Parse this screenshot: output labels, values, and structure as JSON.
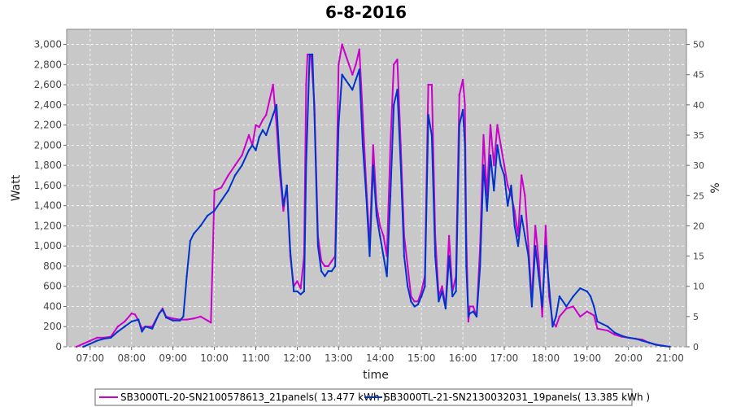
{
  "chart_data": {
    "type": "line",
    "title": "6-8-2016",
    "xlabel": "time",
    "ylabel": "Watt",
    "y2label": "%",
    "x_range": [
      "06:26",
      "21:24"
    ],
    "ylim": [
      0,
      3150
    ],
    "y2lim": [
      0,
      52.5
    ],
    "x_ticks": [
      "07:00",
      "08:00",
      "09:00",
      "10:00",
      "11:00",
      "12:00",
      "13:00",
      "14:00",
      "15:00",
      "16:00",
      "17:00",
      "18:00",
      "19:00",
      "20:00",
      "21:00"
    ],
    "y_ticks": [
      "0",
      "200",
      "400",
      "600",
      "800",
      "1,000",
      "1,200",
      "1,400",
      "1,600",
      "1,800",
      "2,000",
      "2,200",
      "2,400",
      "2,600",
      "2,800",
      "3,000"
    ],
    "y2_ticks": [
      "0",
      "5",
      "10",
      "15",
      "20",
      "25",
      "30",
      "35",
      "40",
      "45",
      "50"
    ],
    "grid": true,
    "legend_position": "bottom",
    "colors": {
      "plot_bg": "#c8c8c8",
      "grid": "#ffffff",
      "outline": "#888888"
    },
    "series": [
      {
        "name": "SB3000TL-20-SN2100578613_21panels( 13.477 kWh )",
        "color": "#cc00cc",
        "points": [
          [
            "06:40",
            0
          ],
          [
            "06:50",
            30
          ],
          [
            "07:00",
            60
          ],
          [
            "07:10",
            90
          ],
          [
            "07:20",
            90
          ],
          [
            "07:30",
            100
          ],
          [
            "07:40",
            200
          ],
          [
            "07:50",
            250
          ],
          [
            "08:00",
            330
          ],
          [
            "08:05",
            320
          ],
          [
            "08:10",
            260
          ],
          [
            "08:15",
            180
          ],
          [
            "08:20",
            200
          ],
          [
            "08:30",
            200
          ],
          [
            "08:40",
            330
          ],
          [
            "08:45",
            380
          ],
          [
            "08:50",
            300
          ],
          [
            "09:00",
            280
          ],
          [
            "09:10",
            270
          ],
          [
            "09:20",
            270
          ],
          [
            "09:30",
            280
          ],
          [
            "09:40",
            300
          ],
          [
            "09:50",
            260
          ],
          [
            "09:55",
            240
          ],
          [
            "09:58",
            1000
          ],
          [
            "10:00",
            1550
          ],
          [
            "10:10",
            1580
          ],
          [
            "10:20",
            1700
          ],
          [
            "10:30",
            1800
          ],
          [
            "10:40",
            1900
          ],
          [
            "10:50",
            2100
          ],
          [
            "10:55",
            2000
          ],
          [
            "11:00",
            2200
          ],
          [
            "11:05",
            2180
          ],
          [
            "11:10",
            2250
          ],
          [
            "11:15",
            2300
          ],
          [
            "11:20",
            2450
          ],
          [
            "11:25",
            2600
          ],
          [
            "11:30",
            2200
          ],
          [
            "11:35",
            1700
          ],
          [
            "11:40",
            1350
          ],
          [
            "11:45",
            1600
          ],
          [
            "11:50",
            900
          ],
          [
            "11:55",
            600
          ],
          [
            "12:00",
            650
          ],
          [
            "12:05",
            580
          ],
          [
            "12:10",
            900
          ],
          [
            "12:13",
            2600
          ],
          [
            "12:15",
            2900
          ],
          [
            "12:20",
            2900
          ],
          [
            "12:25",
            2400
          ],
          [
            "12:30",
            1100
          ],
          [
            "12:35",
            850
          ],
          [
            "12:40",
            800
          ],
          [
            "12:45",
            800
          ],
          [
            "12:50",
            850
          ],
          [
            "12:55",
            900
          ],
          [
            "13:00",
            2800
          ],
          [
            "13:05",
            3000
          ],
          [
            "13:10",
            2900
          ],
          [
            "13:15",
            2800
          ],
          [
            "13:20",
            2700
          ],
          [
            "13:25",
            2800
          ],
          [
            "13:30",
            2950
          ],
          [
            "13:35",
            2300
          ],
          [
            "13:40",
            1600
          ],
          [
            "13:45",
            1000
          ],
          [
            "13:50",
            2000
          ],
          [
            "13:55",
            1400
          ],
          [
            "14:00",
            1200
          ],
          [
            "14:05",
            1100
          ],
          [
            "14:10",
            900
          ],
          [
            "14:15",
            2000
          ],
          [
            "14:20",
            2800
          ],
          [
            "14:25",
            2850
          ],
          [
            "14:30",
            2000
          ],
          [
            "14:35",
            1100
          ],
          [
            "14:40",
            800
          ],
          [
            "14:45",
            500
          ],
          [
            "14:50",
            450
          ],
          [
            "14:55",
            450
          ],
          [
            "15:00",
            550
          ],
          [
            "15:05",
            700
          ],
          [
            "15:10",
            2600
          ],
          [
            "15:15",
            2600
          ],
          [
            "15:20",
            1100
          ],
          [
            "15:25",
            500
          ],
          [
            "15:30",
            600
          ],
          [
            "15:35",
            400
          ],
          [
            "15:40",
            1100
          ],
          [
            "15:45",
            550
          ],
          [
            "15:50",
            700
          ],
          [
            "15:55",
            2500
          ],
          [
            "16:00",
            2650
          ],
          [
            "16:03",
            2400
          ],
          [
            "16:05",
            1100
          ],
          [
            "16:08",
            250
          ],
          [
            "16:10",
            400
          ],
          [
            "16:15",
            400
          ],
          [
            "16:20",
            300
          ],
          [
            "16:25",
            1000
          ],
          [
            "16:30",
            2100
          ],
          [
            "16:35",
            1500
          ],
          [
            "16:40",
            2200
          ],
          [
            "16:45",
            1800
          ],
          [
            "16:50",
            2200
          ],
          [
            "16:55",
            2000
          ],
          [
            "17:00",
            1800
          ],
          [
            "17:05",
            1600
          ],
          [
            "17:10",
            1500
          ],
          [
            "17:15",
            1350
          ],
          [
            "17:20",
            1100
          ],
          [
            "17:25",
            1700
          ],
          [
            "17:30",
            1500
          ],
          [
            "17:35",
            1000
          ],
          [
            "17:40",
            450
          ],
          [
            "17:45",
            1200
          ],
          [
            "17:50",
            850
          ],
          [
            "17:55",
            300
          ],
          [
            "18:00",
            1200
          ],
          [
            "18:05",
            500
          ],
          [
            "18:10",
            250
          ],
          [
            "18:15",
            200
          ],
          [
            "18:20",
            300
          ],
          [
            "18:30",
            380
          ],
          [
            "18:40",
            400
          ],
          [
            "18:50",
            300
          ],
          [
            "19:00",
            350
          ],
          [
            "19:05",
            330
          ],
          [
            "19:10",
            310
          ],
          [
            "19:15",
            180
          ],
          [
            "19:30",
            160
          ],
          [
            "19:40",
            120
          ],
          [
            "19:50",
            100
          ],
          [
            "20:00",
            90
          ],
          [
            "20:10",
            80
          ],
          [
            "20:20",
            70
          ],
          [
            "20:30",
            40
          ],
          [
            "20:40",
            20
          ],
          [
            "20:50",
            10
          ]
        ]
      },
      {
        "name": "SB3000TL-21-SN2130032031_19panels( 13.385 kWh )",
        "color": "#0033cc",
        "points": [
          [
            "06:50",
            0
          ],
          [
            "07:00",
            30
          ],
          [
            "07:10",
            60
          ],
          [
            "07:20",
            80
          ],
          [
            "07:30",
            90
          ],
          [
            "07:40",
            150
          ],
          [
            "07:50",
            200
          ],
          [
            "08:00",
            250
          ],
          [
            "08:05",
            260
          ],
          [
            "08:10",
            270
          ],
          [
            "08:15",
            150
          ],
          [
            "08:20",
            200
          ],
          [
            "08:30",
            180
          ],
          [
            "08:40",
            330
          ],
          [
            "08:45",
            370
          ],
          [
            "08:50",
            290
          ],
          [
            "09:00",
            260
          ],
          [
            "09:10",
            260
          ],
          [
            "09:15",
            300
          ],
          [
            "09:20",
            700
          ],
          [
            "09:25",
            1050
          ],
          [
            "09:30",
            1120
          ],
          [
            "09:40",
            1200
          ],
          [
            "09:50",
            1300
          ],
          [
            "10:00",
            1350
          ],
          [
            "10:10",
            1450
          ],
          [
            "10:20",
            1550
          ],
          [
            "10:30",
            1700
          ],
          [
            "10:40",
            1800
          ],
          [
            "10:50",
            1950
          ],
          [
            "10:55",
            2000
          ],
          [
            "11:00",
            1950
          ],
          [
            "11:05",
            2080
          ],
          [
            "11:10",
            2150
          ],
          [
            "11:15",
            2100
          ],
          [
            "11:20",
            2200
          ],
          [
            "11:25",
            2300
          ],
          [
            "11:30",
            2400
          ],
          [
            "11:35",
            1800
          ],
          [
            "11:40",
            1400
          ],
          [
            "11:45",
            1600
          ],
          [
            "11:50",
            950
          ],
          [
            "11:55",
            550
          ],
          [
            "12:00",
            550
          ],
          [
            "12:05",
            520
          ],
          [
            "12:10",
            550
          ],
          [
            "12:13",
            1800
          ],
          [
            "12:18",
            2900
          ],
          [
            "12:22",
            2900
          ],
          [
            "12:25",
            2300
          ],
          [
            "12:30",
            1000
          ],
          [
            "12:35",
            750
          ],
          [
            "12:40",
            700
          ],
          [
            "12:45",
            750
          ],
          [
            "12:50",
            750
          ],
          [
            "12:55",
            800
          ],
          [
            "13:00",
            2200
          ],
          [
            "13:05",
            2700
          ],
          [
            "13:10",
            2650
          ],
          [
            "13:15",
            2600
          ],
          [
            "13:20",
            2550
          ],
          [
            "13:25",
            2650
          ],
          [
            "13:30",
            2750
          ],
          [
            "13:35",
            2000
          ],
          [
            "13:40",
            1500
          ],
          [
            "13:45",
            900
          ],
          [
            "13:50",
            1800
          ],
          [
            "13:55",
            1300
          ],
          [
            "14:00",
            1100
          ],
          [
            "14:05",
            900
          ],
          [
            "14:10",
            700
          ],
          [
            "14:15",
            1500
          ],
          [
            "14:20",
            2400
          ],
          [
            "14:25",
            2550
          ],
          [
            "14:30",
            1800
          ],
          [
            "14:35",
            900
          ],
          [
            "14:40",
            600
          ],
          [
            "14:45",
            450
          ],
          [
            "14:50",
            400
          ],
          [
            "14:55",
            420
          ],
          [
            "15:00",
            500
          ],
          [
            "15:05",
            600
          ],
          [
            "15:10",
            2300
          ],
          [
            "15:15",
            2100
          ],
          [
            "15:20",
            900
          ],
          [
            "15:25",
            450
          ],
          [
            "15:30",
            550
          ],
          [
            "15:35",
            380
          ],
          [
            "15:40",
            900
          ],
          [
            "15:45",
            500
          ],
          [
            "15:50",
            550
          ],
          [
            "15:55",
            2200
          ],
          [
            "16:00",
            2350
          ],
          [
            "16:03",
            2000
          ],
          [
            "16:05",
            800
          ],
          [
            "16:08",
            300
          ],
          [
            "16:10",
            330
          ],
          [
            "16:15",
            350
          ],
          [
            "16:20",
            300
          ],
          [
            "16:25",
            800
          ],
          [
            "16:30",
            1800
          ],
          [
            "16:35",
            1350
          ],
          [
            "16:40",
            1900
          ],
          [
            "16:45",
            1550
          ],
          [
            "16:50",
            2000
          ],
          [
            "16:55",
            1800
          ],
          [
            "17:00",
            1700
          ],
          [
            "17:05",
            1400
          ],
          [
            "17:10",
            1600
          ],
          [
            "17:15",
            1200
          ],
          [
            "17:20",
            1000
          ],
          [
            "17:25",
            1300
          ],
          [
            "17:30",
            1100
          ],
          [
            "17:35",
            900
          ],
          [
            "17:40",
            400
          ],
          [
            "17:45",
            1000
          ],
          [
            "17:50",
            700
          ],
          [
            "17:55",
            400
          ],
          [
            "18:00",
            1000
          ],
          [
            "18:05",
            600
          ],
          [
            "18:10",
            200
          ],
          [
            "18:15",
            300
          ],
          [
            "18:20",
            500
          ],
          [
            "18:30",
            400
          ],
          [
            "18:40",
            500
          ],
          [
            "18:50",
            580
          ],
          [
            "19:00",
            550
          ],
          [
            "19:05",
            500
          ],
          [
            "19:10",
            400
          ],
          [
            "19:15",
            250
          ],
          [
            "19:30",
            200
          ],
          [
            "19:40",
            140
          ],
          [
            "19:50",
            110
          ],
          [
            "20:00",
            90
          ],
          [
            "20:10",
            80
          ],
          [
            "20:20",
            60
          ],
          [
            "20:30",
            40
          ],
          [
            "20:40",
            20
          ],
          [
            "20:50",
            10
          ],
          [
            "21:00",
            0
          ]
        ]
      }
    ]
  }
}
